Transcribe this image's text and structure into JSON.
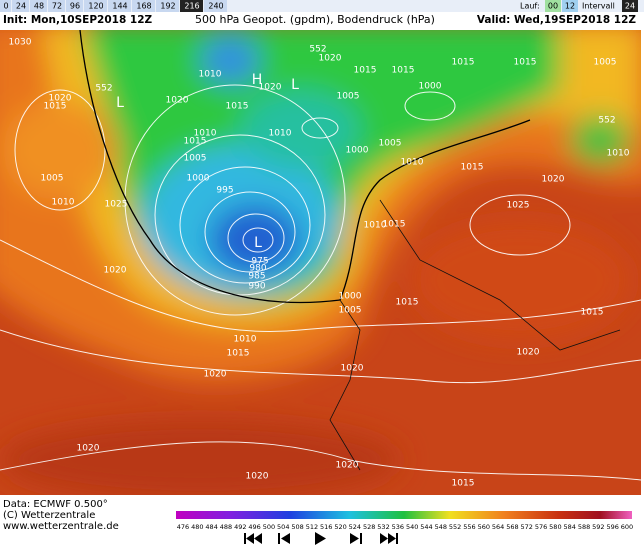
{
  "top_bar": {
    "steps": [
      "0",
      "24",
      "48",
      "72",
      "96",
      "120",
      "144",
      "168",
      "192",
      "216",
      "240"
    ],
    "run_label": "Lauf:",
    "runs": [
      "00",
      "12"
    ],
    "interval_label": "Intervall",
    "interval": "24"
  },
  "header": {
    "init": "Init: Mon,10SEP2018 12Z",
    "title": "500 hPa Geopot. (gpdm), Bodendruck (hPa)",
    "valid": "Valid: Wed,19SEP2018 12Z"
  },
  "map": {
    "isobar_labels": [
      "1030",
      "1010",
      "552",
      "1020",
      "1015",
      "1015",
      "1015",
      "1015",
      "1005",
      "1020",
      "1015",
      "552",
      "1020",
      "1020",
      "1005",
      "1000",
      "1015",
      "1010",
      "1010",
      "1015",
      "1000",
      "1005",
      "552",
      "1010",
      "1005",
      "1010",
      "1015",
      "1020",
      "1005",
      "1000",
      "995",
      "1010",
      "1025",
      "1025",
      "1010",
      "1015",
      "1020",
      "975",
      "980",
      "985",
      "990",
      "1000",
      "1005",
      "1015",
      "1015",
      "1010",
      "1015",
      "1020",
      "1020",
      "1020",
      "1020",
      "1020",
      "1015",
      "1020"
    ],
    "pressure_centers": [
      "L",
      "H",
      "L",
      "L"
    ]
  },
  "footer": {
    "data": "Data: ECMWF  0.500°",
    "copyright": "(C) Wetterzentrale",
    "url": "www.wetterzentrale.de"
  },
  "color_scale": {
    "labels": [
      "476",
      "480",
      "484",
      "488",
      "492",
      "496",
      "500",
      "504",
      "508",
      "512",
      "516",
      "520",
      "524",
      "528",
      "532",
      "536",
      "540",
      "544",
      "548",
      "552",
      "556",
      "560",
      "564",
      "568",
      "572",
      "576",
      "580",
      "584",
      "588",
      "592",
      "596",
      "600"
    ]
  }
}
